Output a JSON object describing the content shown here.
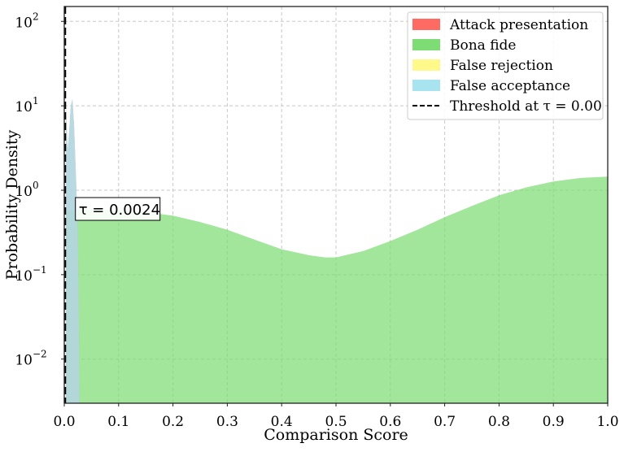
{
  "chart_data": {
    "type": "area",
    "xlabel": "Comparison Score",
    "ylabel": "Probability Density",
    "xlim": [
      0.0,
      1.0
    ],
    "ylim": [
      0.003,
      150
    ],
    "yscale": "log",
    "grid": true,
    "legend_position": "top-right",
    "x_ticks": [
      "0.0",
      "0.1",
      "0.2",
      "0.3",
      "0.4",
      "0.5",
      "0.6",
      "0.7",
      "0.8",
      "0.9",
      "1.0"
    ],
    "y_ticks": [
      {
        "base": "10",
        "exp": "−2",
        "value": 0.01
      },
      {
        "base": "10",
        "exp": "−1",
        "value": 0.1
      },
      {
        "base": "10",
        "exp": "0",
        "value": 1
      },
      {
        "base": "10",
        "exp": "1",
        "value": 10
      },
      {
        "base": "10",
        "exp": "2",
        "value": 100
      }
    ],
    "colors": {
      "attack": "#ff6b63",
      "bona_fide": "#7ddc73",
      "false_rejection": "#fff98a",
      "false_acceptance": "#a8e4f0"
    },
    "legend": [
      {
        "key": "attack",
        "label": "Attack presentation",
        "kind": "patch"
      },
      {
        "key": "bona_fide",
        "label": "Bona fide",
        "kind": "patch"
      },
      {
        "key": "false_rejection",
        "label": "False rejection",
        "kind": "patch"
      },
      {
        "key": "false_acceptance",
        "label": "False acceptance",
        "kind": "patch"
      },
      {
        "key": "threshold",
        "label": "Threshold at τ = 0.00",
        "kind": "dashed-line"
      }
    ],
    "series": [
      {
        "name": "Bona fide",
        "key": "bona_fide",
        "x": [
          0.0,
          0.01,
          0.03,
          0.05,
          0.08,
          0.1,
          0.15,
          0.2,
          0.25,
          0.3,
          0.35,
          0.4,
          0.45,
          0.48,
          0.5,
          0.55,
          0.6,
          0.65,
          0.7,
          0.75,
          0.8,
          0.85,
          0.9,
          0.95,
          1.0
        ],
        "y": [
          0.57,
          0.58,
          0.59,
          0.59,
          0.58,
          0.58,
          0.55,
          0.5,
          0.42,
          0.34,
          0.26,
          0.2,
          0.17,
          0.16,
          0.16,
          0.19,
          0.25,
          0.34,
          0.48,
          0.65,
          0.87,
          1.08,
          1.27,
          1.4,
          1.45
        ]
      },
      {
        "name": "Attack presentation",
        "key": "attack",
        "x": [
          0.0,
          0.003,
          0.006,
          0.008,
          0.012,
          0.015,
          0.018,
          0.022,
          0.025,
          0.027,
          0.028
        ],
        "y": [
          20,
          11,
          3.0,
          4.0,
          10,
          12,
          6,
          1.2,
          0.3,
          0.03,
          0.003
        ]
      },
      {
        "name": "False acceptance",
        "key": "false_acceptance",
        "x": [
          0.0,
          0.003,
          0.006,
          0.008,
          0.012,
          0.015,
          0.018,
          0.022,
          0.025,
          0.027,
          0.028
        ],
        "y": [
          20,
          11,
          3.0,
          4.0,
          10,
          12,
          6,
          1.2,
          0.3,
          0.03,
          0.003
        ]
      }
    ],
    "threshold": {
      "x": 0.0
    },
    "annotation": {
      "text": "τ = 0.0024",
      "x": 0.028,
      "y": 0.6
    }
  }
}
